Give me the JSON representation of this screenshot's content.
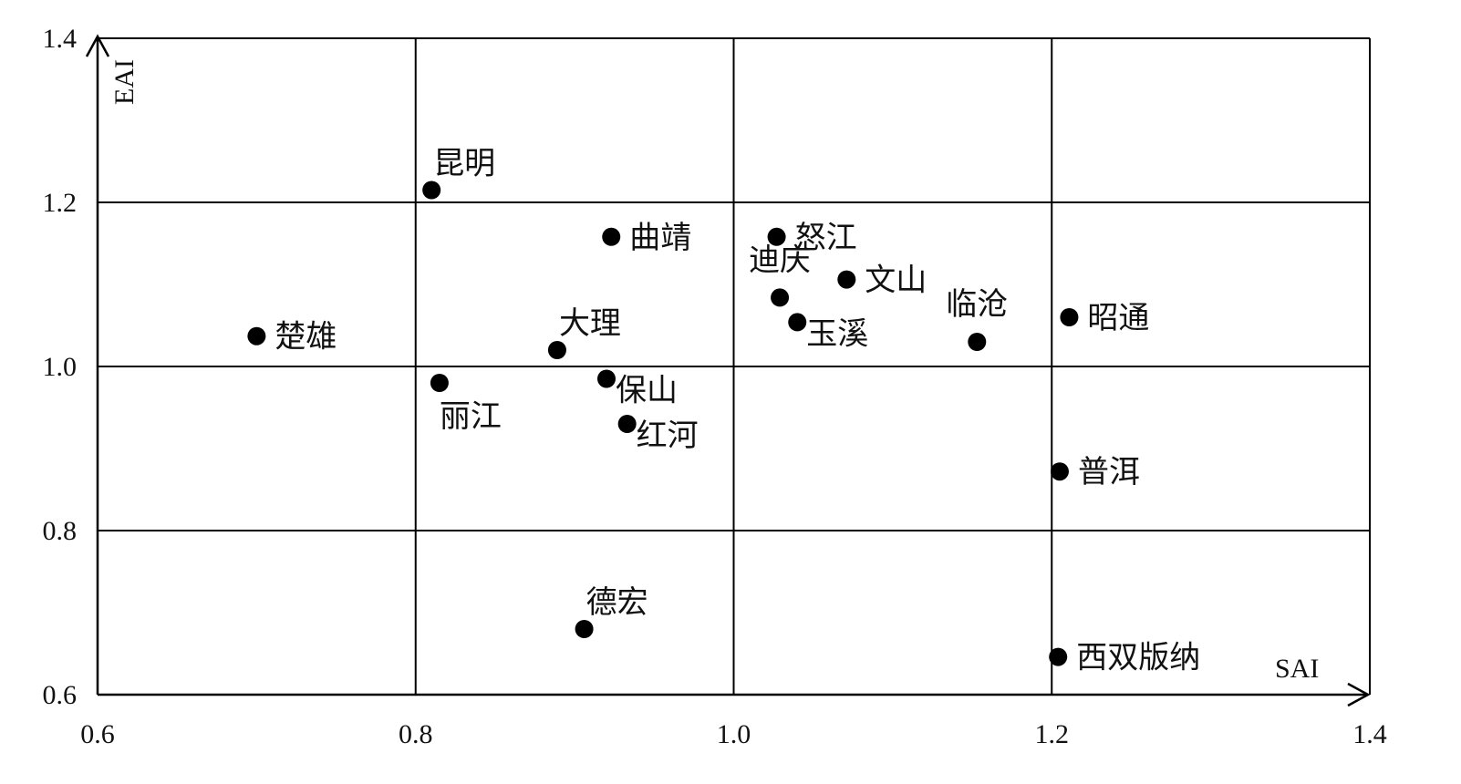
{
  "chart_data": {
    "type": "scatter",
    "title": "",
    "xlabel": "SAI",
    "ylabel": "EAI",
    "xlim": [
      0.6,
      1.4
    ],
    "ylim": [
      0.6,
      1.4
    ],
    "x_ticks": [
      "0.6",
      "0.8",
      "1.0",
      "1.2",
      "1.4"
    ],
    "y_ticks": [
      "0.6",
      "0.8",
      "1.0",
      "1.2",
      "1.4"
    ],
    "grid": true,
    "marker_color": "#000000",
    "points": [
      {
        "label": "昆明",
        "x": 0.81,
        "y": 1.215,
        "anchor": "ne"
      },
      {
        "label": "曲靖",
        "x": 0.923,
        "y": 1.158,
        "anchor": "e"
      },
      {
        "label": "怒江",
        "x": 1.027,
        "y": 1.158,
        "anchor": "e"
      },
      {
        "label": "迪庆",
        "x": 1.029,
        "y": 1.084,
        "anchor": "n"
      },
      {
        "label": "文山",
        "x": 1.071,
        "y": 1.106,
        "anchor": "e"
      },
      {
        "label": "玉溪",
        "x": 1.04,
        "y": 1.054,
        "anchor": "se"
      },
      {
        "label": "临沧",
        "x": 1.153,
        "y": 1.03,
        "anchor": "n"
      },
      {
        "label": "昭通",
        "x": 1.211,
        "y": 1.06,
        "anchor": "e"
      },
      {
        "label": "楚雄",
        "x": 0.7,
        "y": 1.037,
        "anchor": "e"
      },
      {
        "label": "大理",
        "x": 0.889,
        "y": 1.02,
        "anchor": "ne"
      },
      {
        "label": "丽江",
        "x": 0.815,
        "y": 0.98,
        "anchor": "s"
      },
      {
        "label": "保山",
        "x": 0.92,
        "y": 0.985,
        "anchor": "se"
      },
      {
        "label": "红河",
        "x": 0.933,
        "y": 0.93,
        "anchor": "se"
      },
      {
        "label": "普洱",
        "x": 1.205,
        "y": 0.872,
        "anchor": "e"
      },
      {
        "label": "德宏",
        "x": 0.906,
        "y": 0.68,
        "anchor": "ne"
      },
      {
        "label": "西双版纳",
        "x": 1.204,
        "y": 0.646,
        "anchor": "e"
      }
    ]
  }
}
